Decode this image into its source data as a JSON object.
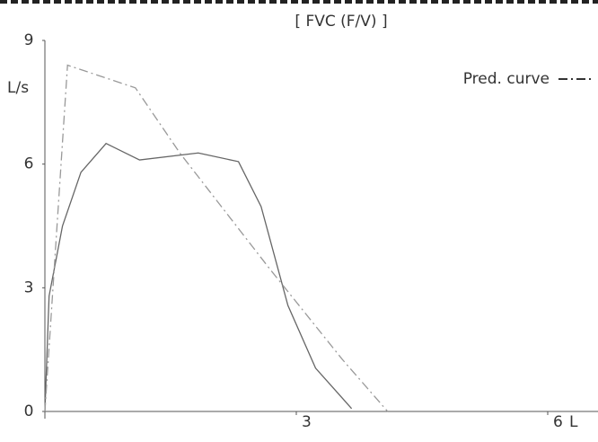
{
  "chart_data": {
    "type": "line",
    "title": "[ FVC (F/V) ]",
    "y_label": "L/s",
    "x_label": "L",
    "xlim": [
      0,
      6.6
    ],
    "ylim": [
      0,
      9
    ],
    "xticks": [
      3,
      6
    ],
    "yticks": [
      0,
      3,
      6,
      9
    ],
    "legend_position": "upper right",
    "series": [
      {
        "color": "#666666",
        "dash": "solid",
        "x": [
          0,
          0.05,
          0.21,
          0.43,
          0.73,
          1.13,
          1.83,
          2.31,
          2.58,
          2.9,
          3.23,
          3.66
        ],
        "values": [
          0,
          2.8,
          4.5,
          5.8,
          6.5,
          6.1,
          6.27,
          6.06,
          4.97,
          2.57,
          1.05,
          0.07
        ]
      },
      {
        "name": "Pred. curve",
        "color": "#999999",
        "dash": "dashdot",
        "x": [
          0,
          0.27,
          1.08,
          1.61,
          2.69,
          3.55,
          4.09
        ],
        "values": [
          0,
          8.4,
          7.85,
          6.27,
          3.44,
          1.26,
          0
        ]
      }
    ]
  }
}
